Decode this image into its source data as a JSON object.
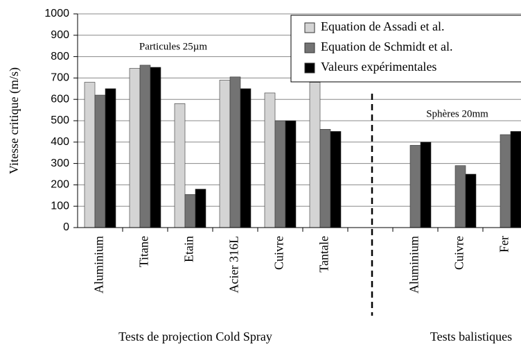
{
  "chart_data": {
    "type": "bar",
    "y_label": "Vitesse critique (m/s)",
    "categories": [
      "Aluminium",
      "Titane",
      "Etain",
      "Acier 316L",
      "Cuivre",
      "Tantale",
      null,
      "Aluminium",
      "Cuivre",
      "Fer"
    ],
    "series": [
      {
        "name": "Equation de Assadi et al.",
        "color": "#d4d4d4",
        "values": [
          680,
          745,
          580,
          690,
          630,
          680,
          null,
          null,
          null,
          null
        ]
      },
      {
        "name": "Equation de Schmidt et al.",
        "color": "#737373",
        "values": [
          620,
          760,
          155,
          705,
          500,
          460,
          null,
          385,
          290,
          435
        ]
      },
      {
        "name": "Valeurs expérimentales",
        "color": "#000000",
        "values": [
          650,
          750,
          180,
          650,
          500,
          450,
          null,
          400,
          250,
          450
        ]
      }
    ],
    "annotations": [
      "Particules 25µm",
      "Sphères 20mm"
    ],
    "group_labels": [
      "Tests de projection Cold Spray",
      "Tests balistiques"
    ],
    "ylim": [
      0,
      1000
    ],
    "yticks": [
      0,
      100,
      200,
      300,
      400,
      500,
      600,
      700,
      800,
      900,
      1000
    ],
    "grid": true,
    "legend": "top right"
  }
}
